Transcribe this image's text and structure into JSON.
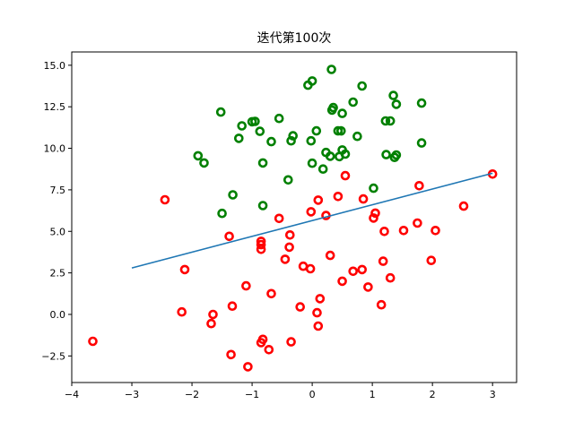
{
  "chart_data": {
    "type": "scatter",
    "title": "迭代第100次",
    "xlabel": "",
    "ylabel": "",
    "xlim": [
      -4.0,
      3.4
    ],
    "ylim": [
      -4.1,
      15.8
    ],
    "xticks": [
      -4,
      -3,
      -2,
      -1,
      0,
      1,
      2,
      3
    ],
    "yticks": [
      -2.5,
      0.0,
      2.5,
      5.0,
      7.5,
      10.0,
      12.5,
      15.0
    ],
    "ytick_labels": [
      "−2.5",
      "0.0",
      "2.5",
      "5.0",
      "7.5",
      "10.0",
      "12.5",
      "15.0"
    ],
    "xtick_labels": [
      "−4",
      "−3",
      "−2",
      "−1",
      "0",
      "1",
      "2",
      "3"
    ],
    "grid": false,
    "series": [
      {
        "marker": "hollow-circle",
        "color": "#008000",
        "points": [
          [
            0.32,
            14.75
          ],
          [
            -0.07,
            13.8
          ],
          [
            0.0,
            14.05
          ],
          [
            0.83,
            13.75
          ],
          [
            1.35,
            13.18
          ],
          [
            1.4,
            12.65
          ],
          [
            1.82,
            12.72
          ],
          [
            0.68,
            12.78
          ],
          [
            0.35,
            12.45
          ],
          [
            0.33,
            12.3
          ],
          [
            0.5,
            12.1
          ],
          [
            -1.52,
            12.18
          ],
          [
            -0.55,
            11.8
          ],
          [
            -0.95,
            11.62
          ],
          [
            -1.0,
            11.6
          ],
          [
            -1.17,
            11.35
          ],
          [
            1.22,
            11.65
          ],
          [
            1.3,
            11.65
          ],
          [
            0.43,
            11.05
          ],
          [
            0.48,
            11.05
          ],
          [
            0.07,
            11.05
          ],
          [
            -0.87,
            11.02
          ],
          [
            -0.32,
            10.75
          ],
          [
            -1.22,
            10.6
          ],
          [
            -0.68,
            10.4
          ],
          [
            -0.35,
            10.45
          ],
          [
            -0.02,
            10.45
          ],
          [
            0.75,
            10.72
          ],
          [
            1.82,
            10.32
          ],
          [
            0.5,
            9.9
          ],
          [
            0.23,
            9.75
          ],
          [
            0.55,
            9.65
          ],
          [
            0.3,
            9.52
          ],
          [
            0.45,
            9.5
          ],
          [
            -1.9,
            9.55
          ],
          [
            1.23,
            9.62
          ],
          [
            1.37,
            9.45
          ],
          [
            1.4,
            9.6
          ],
          [
            -1.8,
            9.12
          ],
          [
            -0.82,
            9.12
          ],
          [
            0.0,
            9.1
          ],
          [
            0.18,
            8.75
          ],
          [
            -0.4,
            8.1
          ],
          [
            1.02,
            7.6
          ],
          [
            -1.32,
            7.2
          ],
          [
            -0.82,
            6.55
          ],
          [
            -1.5,
            6.08
          ]
        ]
      },
      {
        "marker": "hollow-circle",
        "color": "#ff0000",
        "points": [
          [
            3.0,
            8.45
          ],
          [
            0.55,
            8.35
          ],
          [
            1.78,
            7.75
          ],
          [
            -2.45,
            6.9
          ],
          [
            0.1,
            6.88
          ],
          [
            0.43,
            7.1
          ],
          [
            0.85,
            6.95
          ],
          [
            2.52,
            6.52
          ],
          [
            -0.02,
            6.18
          ],
          [
            1.05,
            6.1
          ],
          [
            1.02,
            5.8
          ],
          [
            0.23,
            5.95
          ],
          [
            -0.55,
            5.78
          ],
          [
            1.75,
            5.5
          ],
          [
            1.2,
            5.0
          ],
          [
            1.52,
            5.05
          ],
          [
            2.05,
            5.05
          ],
          [
            -1.38,
            4.7
          ],
          [
            -0.37,
            4.78
          ],
          [
            -0.85,
            4.4
          ],
          [
            -0.85,
            4.2
          ],
          [
            -0.85,
            3.92
          ],
          [
            -0.38,
            4.05
          ],
          [
            0.3,
            3.55
          ],
          [
            -0.45,
            3.32
          ],
          [
            -0.15,
            2.9
          ],
          [
            -0.03,
            2.75
          ],
          [
            0.68,
            2.6
          ],
          [
            0.83,
            2.7
          ],
          [
            1.98,
            3.25
          ],
          [
            1.18,
            3.2
          ],
          [
            -2.12,
            2.7
          ],
          [
            1.3,
            2.2
          ],
          [
            0.5,
            2.0
          ],
          [
            -1.1,
            1.72
          ],
          [
            0.93,
            1.65
          ],
          [
            -0.68,
            1.25
          ],
          [
            0.13,
            0.95
          ],
          [
            -0.2,
            0.45
          ],
          [
            1.15,
            0.58
          ],
          [
            -1.33,
            0.5
          ],
          [
            -2.17,
            0.15
          ],
          [
            -1.65,
            0.0
          ],
          [
            0.08,
            0.1
          ],
          [
            -1.68,
            -0.55
          ],
          [
            0.1,
            -0.7
          ],
          [
            -3.65,
            -1.62
          ],
          [
            -0.82,
            -1.5
          ],
          [
            -0.85,
            -1.7
          ],
          [
            -0.35,
            -1.65
          ],
          [
            -0.72,
            -2.12
          ],
          [
            -1.35,
            -2.42
          ],
          [
            -1.07,
            -3.15
          ]
        ]
      }
    ],
    "lines": [
      {
        "color": "#1f77b4",
        "x": [
          -3.0,
          3.0
        ],
        "y": [
          2.8,
          8.5
        ]
      }
    ]
  }
}
